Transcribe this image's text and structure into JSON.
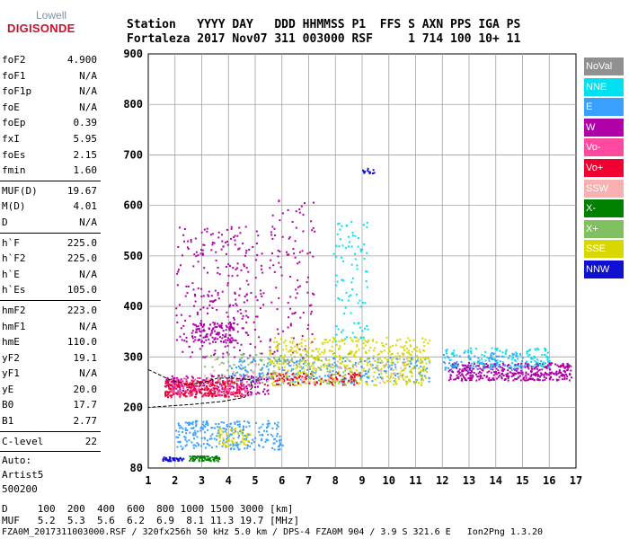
{
  "logo": {
    "line1": "Lowell",
    "line2": "DIGISONDE"
  },
  "header": {
    "labels": "Station   YYYY DAY   DDD HHMMSS P1  FFS S AXN PPS IGA PS",
    "values": "Fortaleza 2017 Nov07 311 003000 RSF     1 714 100 10+ 11"
  },
  "params": {
    "group1": [
      {
        "label": "foF2",
        "value": "4.900"
      },
      {
        "label": "foF1",
        "value": "N/A"
      },
      {
        "label": "foF1p",
        "value": "N/A"
      },
      {
        "label": "foE",
        "value": "N/A"
      },
      {
        "label": "foEp",
        "value": "0.39"
      },
      {
        "label": "fxI",
        "value": "5.95"
      },
      {
        "label": "foEs",
        "value": "2.15"
      },
      {
        "label": "fmin",
        "value": "1.60"
      }
    ],
    "group2": [
      {
        "label": "MUF(D)",
        "value": "19.67"
      },
      {
        "label": "M(D)",
        "value": "4.01"
      },
      {
        "label": "D",
        "value": "N/A"
      }
    ],
    "group3": [
      {
        "label": "h`F",
        "value": "225.0"
      },
      {
        "label": "h`F2",
        "value": "225.0"
      },
      {
        "label": "h`E",
        "value": "N/A"
      },
      {
        "label": "h`Es",
        "value": "105.0"
      }
    ],
    "group4": [
      {
        "label": "hmF2",
        "value": "223.0"
      },
      {
        "label": "hmF1",
        "value": "N/A"
      },
      {
        "label": "hmE",
        "value": "110.0"
      },
      {
        "label": "yF2",
        "value": "19.1"
      },
      {
        "label": "yF1",
        "value": "N/A"
      },
      {
        "label": "yE",
        "value": "20.0"
      },
      {
        "label": "B0",
        "value": "17.7"
      },
      {
        "label": "B1",
        "value": "2.77"
      }
    ],
    "group5": [
      {
        "label": "C-level",
        "value": "22"
      }
    ],
    "auto": [
      "Auto:",
      "Artist5",
      "500200"
    ]
  },
  "footer": {
    "d_row": "D     100  200  400  600  800 1000 1500 3000 [km]",
    "muf_row": "MUF   5.2  5.3  5.6  6.2  6.9  8.1 11.3 19.7 [MHz]",
    "info": "FZA0M_2017311003000.RSF / 320fx256h 50 kHz 5.0 km / DPS-4 FZA0M 904 / 3.9 S 321.6 E   Ion2Png 1.3.20"
  },
  "legend": [
    {
      "label": "NoVal",
      "color": "#909090"
    },
    {
      "label": "NNE",
      "color": "#00e0f0"
    },
    {
      "label": "E",
      "color": "#3aa0ff"
    },
    {
      "label": "W",
      "color": "#b000a8"
    },
    {
      "label": "Vo-",
      "color": "#ff4aa0"
    },
    {
      "label": "Vo+",
      "color": "#f00030"
    },
    {
      "label": "SSW",
      "color": "#f8b0b0"
    },
    {
      "label": "X-",
      "color": "#008000"
    },
    {
      "label": "X+",
      "color": "#80c060"
    },
    {
      "label": "SSE",
      "color": "#d8d800"
    },
    {
      "label": "NNW",
      "color": "#1010d0"
    }
  ],
  "chart_data": {
    "type": "scatter",
    "xlabel": "",
    "ylabel": "",
    "xlim": [
      1,
      17
    ],
    "ylim": [
      80,
      900
    ],
    "xticks": [
      1,
      2,
      3,
      4,
      5,
      6,
      7,
      8,
      9,
      10,
      11,
      12,
      13,
      14,
      15,
      16,
      17
    ],
    "yticks": [
      80,
      200,
      300,
      400,
      500,
      600,
      700,
      800,
      900
    ],
    "grid": true,
    "legend_position": "right",
    "clusters": [
      {
        "color": "#b000a8",
        "x0": 2.0,
        "x1": 5.3,
        "y0": 300,
        "y1": 560,
        "n": 260
      },
      {
        "color": "#b000a8",
        "x0": 2.6,
        "x1": 4.2,
        "y0": 330,
        "y1": 370,
        "n": 120
      },
      {
        "color": "#b000a8",
        "x0": 5.5,
        "x1": 7.2,
        "y0": 300,
        "y1": 620,
        "n": 110
      },
      {
        "color": "#b000a8",
        "x0": 12.2,
        "x1": 16.8,
        "y0": 255,
        "y1": 290,
        "n": 420
      },
      {
        "color": "#b000a8",
        "x0": 1.6,
        "x1": 5.5,
        "y0": 225,
        "y1": 265,
        "n": 200
      },
      {
        "color": "#00e0f0",
        "x0": 7.9,
        "x1": 9.2,
        "y0": 330,
        "y1": 570,
        "n": 90
      },
      {
        "color": "#00e0f0",
        "x0": 12.0,
        "x1": 16.0,
        "y0": 280,
        "y1": 320,
        "n": 130
      },
      {
        "color": "#3aa0ff",
        "x0": 2.0,
        "x1": 6.0,
        "y0": 118,
        "y1": 175,
        "n": 260
      },
      {
        "color": "#3aa0ff",
        "x0": 4.0,
        "x1": 11.5,
        "y0": 250,
        "y1": 300,
        "n": 320
      },
      {
        "color": "#3aa0ff",
        "x0": 12.0,
        "x1": 15.0,
        "y0": 275,
        "y1": 310,
        "n": 80
      },
      {
        "color": "#d8d800",
        "x0": 5.5,
        "x1": 11.5,
        "y0": 245,
        "y1": 340,
        "n": 520
      },
      {
        "color": "#d8d800",
        "x0": 3.6,
        "x1": 4.8,
        "y0": 125,
        "y1": 160,
        "n": 60
      },
      {
        "color": "#f00030",
        "x0": 1.6,
        "x1": 4.5,
        "y0": 222,
        "y1": 255,
        "n": 260
      },
      {
        "color": "#f00030",
        "x0": 5.0,
        "x1": 9.0,
        "y0": 245,
        "y1": 270,
        "n": 100
      },
      {
        "color": "#ff4aa0",
        "x0": 1.8,
        "x1": 4.8,
        "y0": 225,
        "y1": 260,
        "n": 120
      },
      {
        "color": "#008000",
        "x0": 2.5,
        "x1": 3.7,
        "y0": 95,
        "y1": 105,
        "n": 70
      },
      {
        "color": "#80c060",
        "x0": 3.0,
        "x1": 9.0,
        "y0": 245,
        "y1": 310,
        "n": 110
      },
      {
        "color": "#1010d0",
        "x0": 1.5,
        "x1": 2.3,
        "y0": 95,
        "y1": 103,
        "n": 40
      },
      {
        "color": "#1010d0",
        "x0": 9.0,
        "x1": 9.6,
        "y0": 665,
        "y1": 675,
        "n": 14
      },
      {
        "color": "#f8b0b0",
        "x0": 3.0,
        "x1": 11.0,
        "y0": 250,
        "y1": 300,
        "n": 70
      }
    ],
    "trace_points": [
      {
        "x": 1.0,
        "y": 275
      },
      {
        "x": 1.8,
        "y": 255
      },
      {
        "x": 2.5,
        "y": 245
      },
      {
        "x": 3.1,
        "y": 250
      },
      {
        "x": 3.6,
        "y": 258
      },
      {
        "x": 4.2,
        "y": 258
      },
      {
        "x": 4.8,
        "y": 255
      },
      {
        "x": 4.9,
        "y": 240
      },
      {
        "x": 4.6,
        "y": 220
      },
      {
        "x": 3.8,
        "y": 212
      },
      {
        "x": 2.6,
        "y": 206
      },
      {
        "x": 1.0,
        "y": 200
      }
    ]
  }
}
